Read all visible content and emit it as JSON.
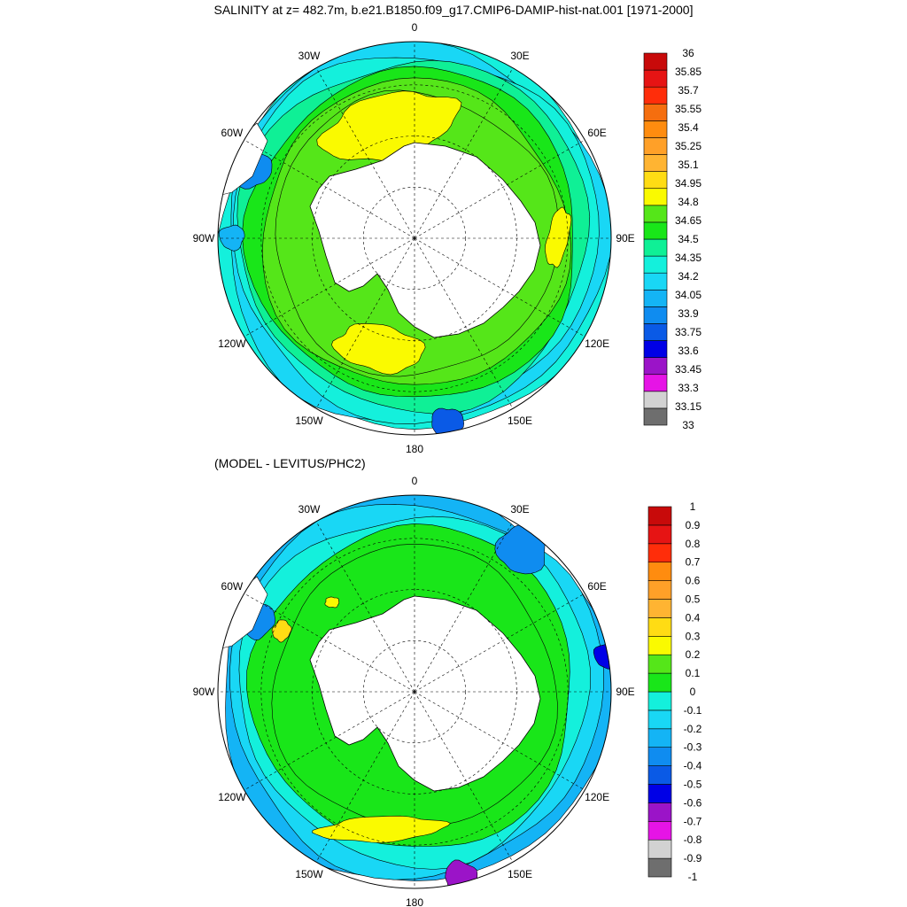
{
  "title": "SALINITY at z= 482.7m, b.e21.B1850.f09_g17.CMIP6-DAMIP-hist-nat.001 [1971-2000]",
  "subtitle": "(MODEL - LEVITUS/PHC2)",
  "longitude_labels": [
    "0",
    "30E",
    "60E",
    "90E",
    "120E",
    "150E",
    "180",
    "150W",
    "120W",
    "90W",
    "60W",
    "30W"
  ],
  "colors": {
    "salinity": [
      "#6e6e6e",
      "#d2d2d2",
      "#e614e6",
      "#9b14c8",
      "#0000e6",
      "#0a5ae6",
      "#0f8cf0",
      "#14b4f5",
      "#19d7f5",
      "#14f0dc",
      "#0ff096",
      "#19e619",
      "#55e619",
      "#fafa00",
      "#ffdc14",
      "#ffb432",
      "#ffa028",
      "#ff8c0f",
      "#f56e0f",
      "#ff2d0a",
      "#e61414",
      "#c80a0a"
    ],
    "difference": [
      "#6e6e6e",
      "#d2d2d2",
      "#e614e6",
      "#9b14c8",
      "#0000e6",
      "#0a5ae6",
      "#0f8cf0",
      "#14b4f5",
      "#19d7f5",
      "#14f0dc",
      "#19e619",
      "#55e619",
      "#fafa00",
      "#ffdc14",
      "#ffb432",
      "#ffa028",
      "#ff8c0f",
      "#ff2d0a",
      "#e61414",
      "#c80a0a"
    ]
  },
  "maps": [
    {
      "name": "salinity",
      "colorbar_labels": [
        "36",
        "35.85",
        "35.7",
        "35.55",
        "35.4",
        "35.25",
        "35.1",
        "34.95",
        "34.8",
        "34.65",
        "34.5",
        "34.35",
        "34.2",
        "34.05",
        "33.9",
        "33.75",
        "33.6",
        "33.45",
        "33.3",
        "33.15",
        "33"
      ]
    },
    {
      "name": "difference",
      "colorbar_labels": [
        "1",
        "0.9",
        "0.8",
        "0.7",
        "0.6",
        "0.5",
        "0.4",
        "0.3",
        "0.2",
        "0.1",
        "0",
        "-0.1",
        "-0.2",
        "-0.3",
        "-0.4",
        "-0.5",
        "-0.6",
        "-0.7",
        "-0.8",
        "-0.9",
        "-1"
      ]
    }
  ]
}
